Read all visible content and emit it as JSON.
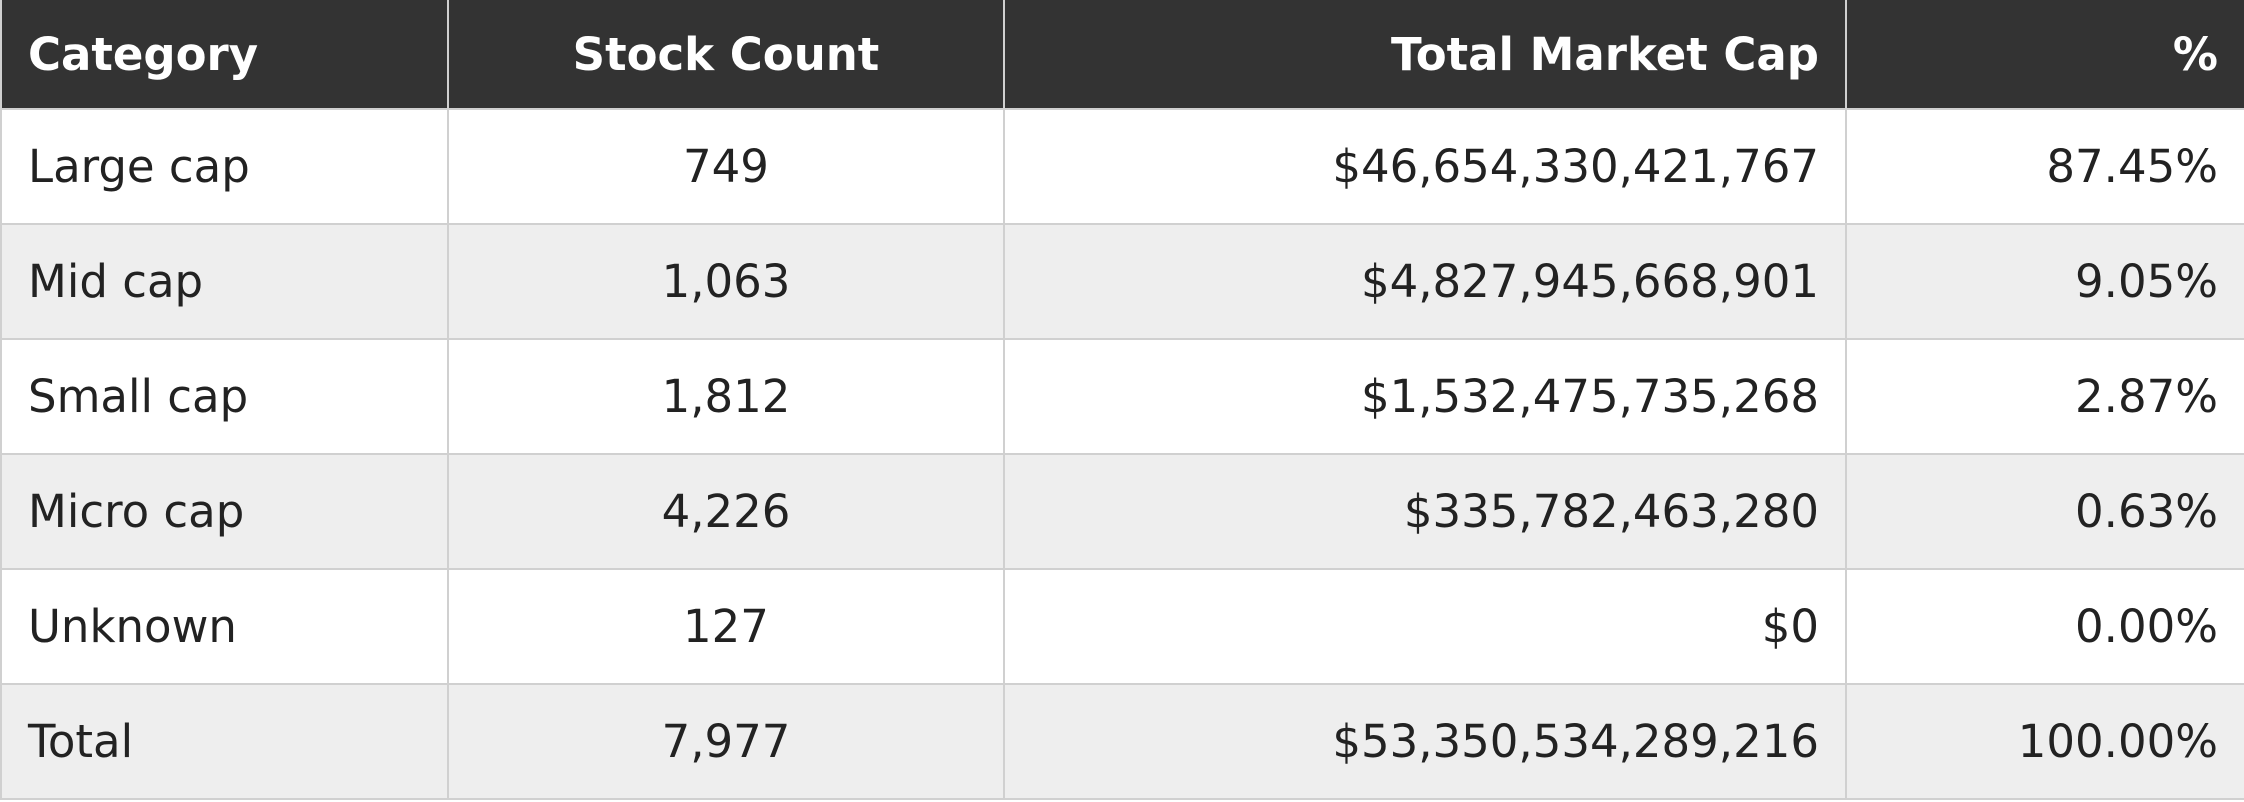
{
  "table": {
    "headers": [
      "Category",
      "Stock Count",
      "Total Market Cap",
      "%"
    ],
    "rows": [
      [
        "Large cap",
        "749",
        "$46,654,330,421,767",
        "87.45%"
      ],
      [
        "Mid cap",
        "1,063",
        "$4,827,945,668,901",
        "9.05%"
      ],
      [
        "Small cap",
        "1,812",
        "$1,532,475,735,268",
        "2.87%"
      ],
      [
        "Micro cap",
        "4,226",
        "$335,782,463,280",
        "0.63%"
      ],
      [
        "Unknown",
        "127",
        "$0",
        "0.00%"
      ],
      [
        "Total",
        "7,977",
        "$53,350,534,289,216",
        "100.00%"
      ]
    ]
  },
  "colors": {
    "header_bg": "#333333",
    "header_text": "#ffffff",
    "row_alt_bg": "#eeeeee",
    "border": "#d0d0d0"
  }
}
